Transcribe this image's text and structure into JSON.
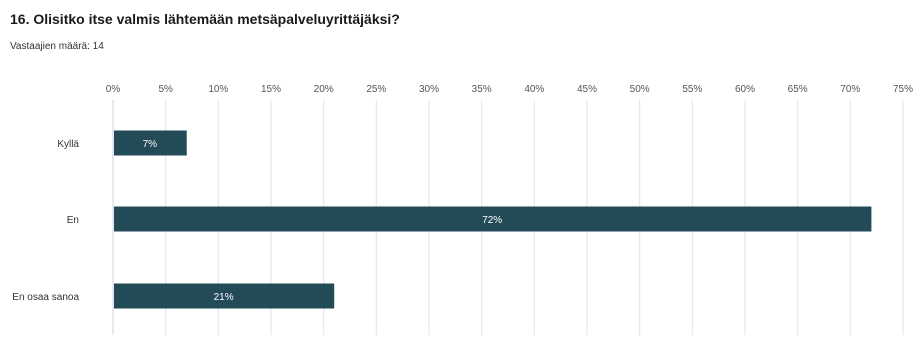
{
  "question": {
    "title": "16. Olisitko itse valmis lähtemään metsäpalveluyrittäjäksi?"
  },
  "respondents": {
    "label": "Vastaajien määrä: 14"
  },
  "colors": {
    "bar": "#234a57",
    "grid": "#e2e2ea",
    "axis": "#cfd2e6",
    "bar_text": "#ffffff"
  },
  "chart_data": {
    "type": "bar",
    "orientation": "horizontal",
    "categories": [
      "Kyllä",
      "En",
      "En osaa sanoa"
    ],
    "values": [
      7,
      72,
      21
    ],
    "value_labels": [
      "7%",
      "72%",
      "21%"
    ],
    "ticks": [
      "0%",
      "5%",
      "10%",
      "15%",
      "20%",
      "25%",
      "30%",
      "35%",
      "40%",
      "45%",
      "50%",
      "55%",
      "60%",
      "65%",
      "70%",
      "75%"
    ],
    "xlim": [
      0,
      75
    ],
    "grid": true
  }
}
